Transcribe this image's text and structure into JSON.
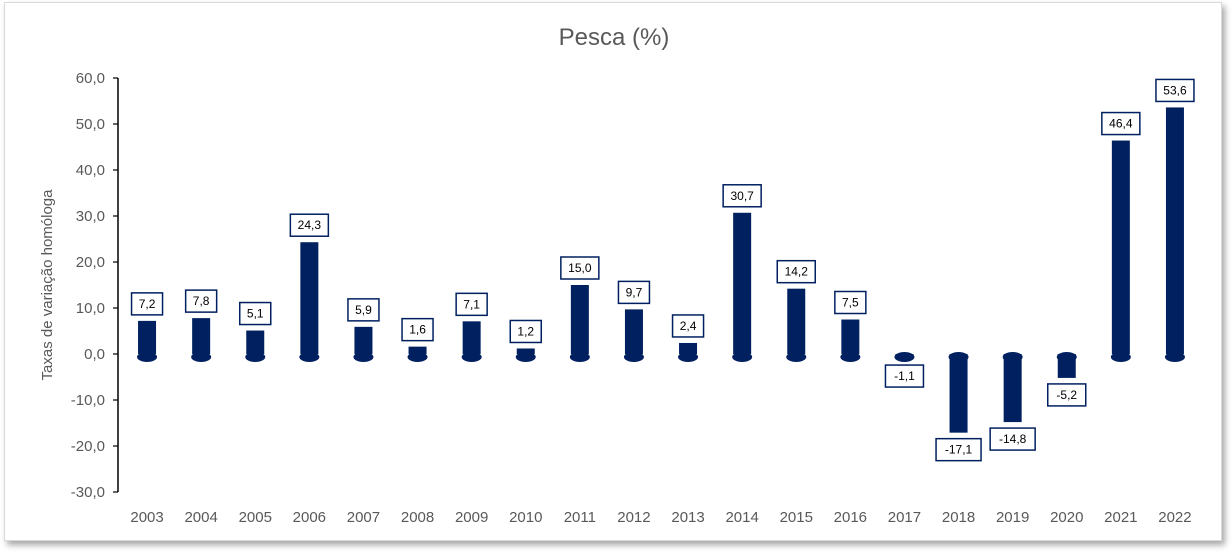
{
  "chart_data": {
    "type": "bar",
    "title": "Pesca (%)",
    "xlabel": "",
    "ylabel": "Taxas de variação homóloga",
    "categories": [
      "2003",
      "2004",
      "2005",
      "2006",
      "2007",
      "2008",
      "2009",
      "2010",
      "2011",
      "2012",
      "2013",
      "2014",
      "2015",
      "2016",
      "2017",
      "2018",
      "2019",
      "2020",
      "2021",
      "2022"
    ],
    "values": [
      7.2,
      7.8,
      5.1,
      24.3,
      5.9,
      1.6,
      7.1,
      1.2,
      15.0,
      9.7,
      2.4,
      30.7,
      14.2,
      7.5,
      -1.1,
      -17.1,
      -14.8,
      -5.2,
      46.4,
      53.6
    ],
    "data_labels": [
      "7,2",
      "7,8",
      "5,1",
      "24,3",
      "5,9",
      "1,6",
      "7,1",
      "1,2",
      "15,0",
      "9,7",
      "2,4",
      "30,7",
      "14,2",
      "7,5",
      "-1,1",
      "-17,1",
      "-14,8",
      "-5,2",
      "46,4",
      "53,6"
    ],
    "ylim": [
      -30,
      60
    ],
    "ytick_values": [
      -30,
      -20,
      -10,
      0,
      10,
      20,
      30,
      40,
      50,
      60
    ],
    "ytick_labels": [
      "-30,0",
      "-20,0",
      "-10,0",
      "0,0",
      "10,0",
      "20,0",
      "30,0",
      "40,0",
      "50,0",
      "60,0"
    ],
    "grid": false,
    "legend": "none",
    "bar_color": "#002060"
  }
}
